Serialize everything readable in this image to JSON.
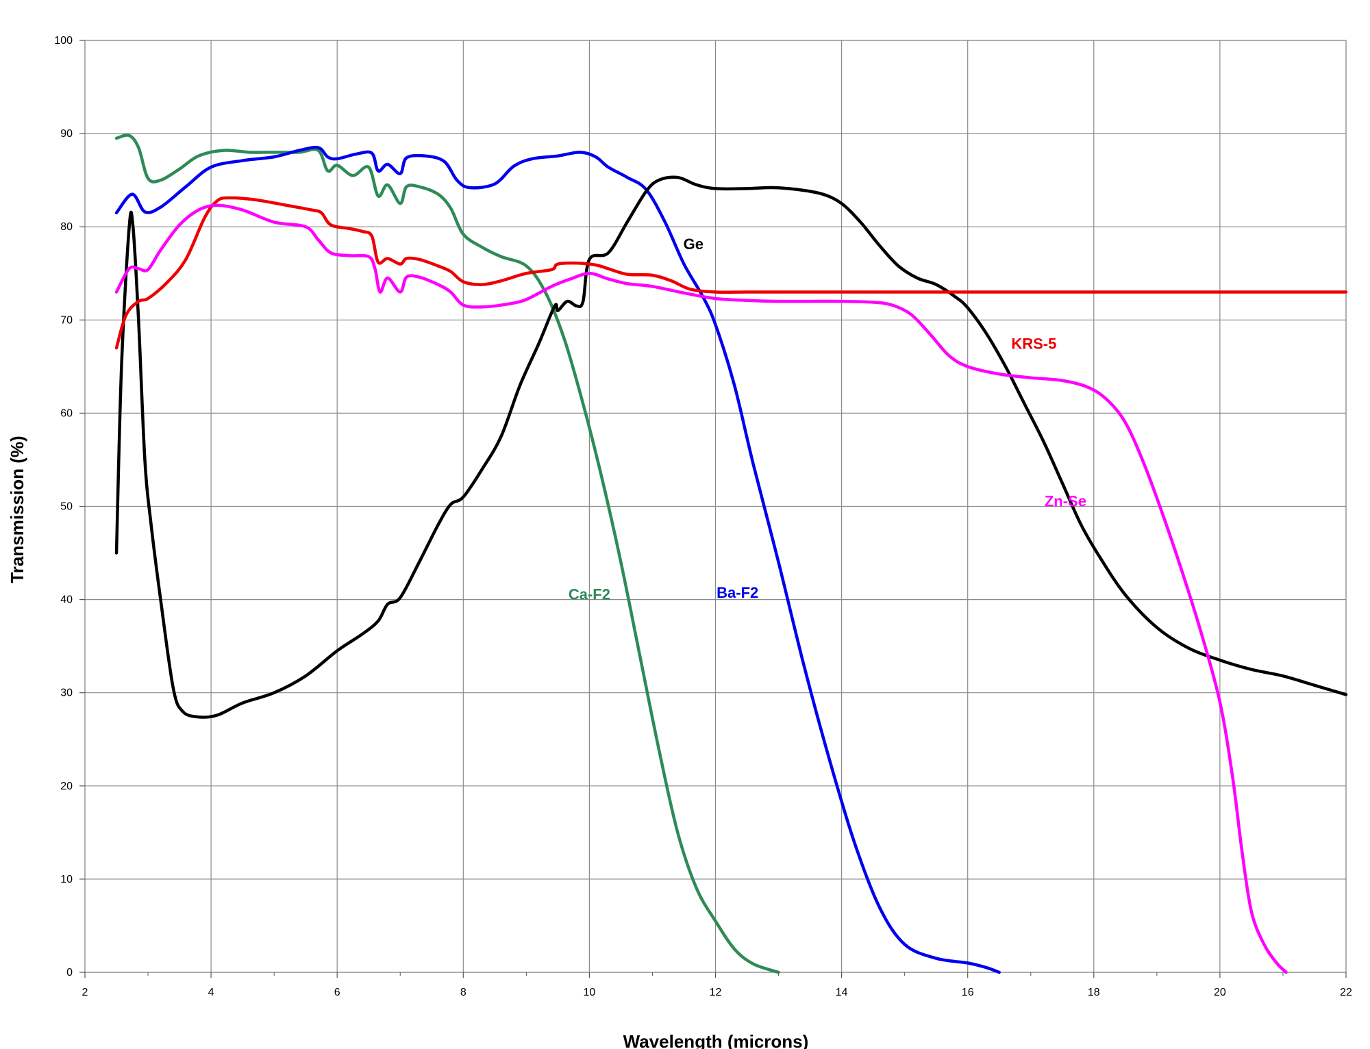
{
  "chart_data": {
    "type": "line",
    "title": "",
    "xlabel": "Wavelength (microns)",
    "ylabel": "Transmission (%)",
    "xlim": [
      2,
      22
    ],
    "ylim": [
      0,
      100
    ],
    "xticks": [
      2,
      4,
      6,
      8,
      10,
      12,
      14,
      16,
      18,
      20,
      22
    ],
    "yticks": [
      0,
      10,
      20,
      30,
      40,
      50,
      60,
      70,
      80,
      90,
      100
    ],
    "grid": true,
    "legend": "inline labels",
    "series": [
      {
        "name": "Ca-F2",
        "color": "#2e8b57",
        "label_at": [
          10.0,
          40
        ],
        "points": [
          [
            2.5,
            89.5
          ],
          [
            2.7,
            89.8
          ],
          [
            2.85,
            88.5
          ],
          [
            3.0,
            85.2
          ],
          [
            3.2,
            85.0
          ],
          [
            3.5,
            86.2
          ],
          [
            3.8,
            87.6
          ],
          [
            4.2,
            88.2
          ],
          [
            4.6,
            88.0
          ],
          [
            5.0,
            88.0
          ],
          [
            5.4,
            88.0
          ],
          [
            5.7,
            88.2
          ],
          [
            5.85,
            86.0
          ],
          [
            6.0,
            86.6
          ],
          [
            6.25,
            85.5
          ],
          [
            6.5,
            86.4
          ],
          [
            6.65,
            83.3
          ],
          [
            6.8,
            84.5
          ],
          [
            7.0,
            82.5
          ],
          [
            7.1,
            84.3
          ],
          [
            7.3,
            84.3
          ],
          [
            7.6,
            83.5
          ],
          [
            7.8,
            82.0
          ],
          [
            8.0,
            79.2
          ],
          [
            8.3,
            77.8
          ],
          [
            8.6,
            76.8
          ],
          [
            9.0,
            75.8
          ],
          [
            9.3,
            73.0
          ],
          [
            9.6,
            68.0
          ],
          [
            9.9,
            61.0
          ],
          [
            10.2,
            53.0
          ],
          [
            10.5,
            44.0
          ],
          [
            10.8,
            34.0
          ],
          [
            11.1,
            24.0
          ],
          [
            11.4,
            15.0
          ],
          [
            11.7,
            9.0
          ],
          [
            12.0,
            5.5
          ],
          [
            12.3,
            2.5
          ],
          [
            12.6,
            0.9
          ],
          [
            13.0,
            0.0
          ]
        ]
      },
      {
        "name": "Ba-F2",
        "color": "#0000ee",
        "label_at": [
          12.35,
          40.2
        ],
        "points": [
          [
            2.5,
            81.5
          ],
          [
            2.75,
            83.5
          ],
          [
            2.95,
            81.6
          ],
          [
            3.2,
            82.1
          ],
          [
            3.6,
            84.3
          ],
          [
            4.0,
            86.4
          ],
          [
            4.5,
            87.1
          ],
          [
            5.0,
            87.5
          ],
          [
            5.4,
            88.2
          ],
          [
            5.7,
            88.5
          ],
          [
            5.85,
            87.5
          ],
          [
            6.0,
            87.3
          ],
          [
            6.3,
            87.8
          ],
          [
            6.55,
            87.9
          ],
          [
            6.65,
            86.0
          ],
          [
            6.8,
            86.7
          ],
          [
            7.0,
            85.7
          ],
          [
            7.1,
            87.4
          ],
          [
            7.4,
            87.6
          ],
          [
            7.7,
            87.0
          ],
          [
            7.9,
            85.0
          ],
          [
            8.1,
            84.2
          ],
          [
            8.5,
            84.6
          ],
          [
            8.8,
            86.5
          ],
          [
            9.1,
            87.3
          ],
          [
            9.5,
            87.6
          ],
          [
            9.85,
            88.0
          ],
          [
            10.1,
            87.5
          ],
          [
            10.3,
            86.4
          ],
          [
            10.6,
            85.3
          ],
          [
            10.9,
            84.0
          ],
          [
            11.2,
            80.5
          ],
          [
            11.5,
            76.0
          ],
          [
            11.8,
            72.5
          ],
          [
            12.0,
            69.5
          ],
          [
            12.3,
            63.0
          ],
          [
            12.6,
            54.5
          ],
          [
            13.0,
            44.0
          ],
          [
            13.4,
            33.0
          ],
          [
            13.8,
            23.0
          ],
          [
            14.2,
            14.0
          ],
          [
            14.6,
            7.0
          ],
          [
            15.0,
            3.0
          ],
          [
            15.5,
            1.5
          ],
          [
            16.0,
            1.0
          ],
          [
            16.3,
            0.5
          ],
          [
            16.5,
            0.0
          ]
        ]
      },
      {
        "name": "Ge",
        "color": "#000000",
        "label_at": [
          11.65,
          77.6
        ],
        "points": [
          [
            2.5,
            45.0
          ],
          [
            2.58,
            65.0
          ],
          [
            2.7,
            79.8
          ],
          [
            2.76,
            80.2
          ],
          [
            2.85,
            70.0
          ],
          [
            2.95,
            55.0
          ],
          [
            3.05,
            48.0
          ],
          [
            3.2,
            40.0
          ],
          [
            3.4,
            30.5
          ],
          [
            3.55,
            28.0
          ],
          [
            3.8,
            27.4
          ],
          [
            4.1,
            27.6
          ],
          [
            4.5,
            28.9
          ],
          [
            5.0,
            30.0
          ],
          [
            5.5,
            31.8
          ],
          [
            6.0,
            34.5
          ],
          [
            6.4,
            36.3
          ],
          [
            6.65,
            37.7
          ],
          [
            6.8,
            39.5
          ],
          [
            7.0,
            40.2
          ],
          [
            7.3,
            44.0
          ],
          [
            7.6,
            48.0
          ],
          [
            7.8,
            50.2
          ],
          [
            8.0,
            51.0
          ],
          [
            8.3,
            54.0
          ],
          [
            8.6,
            57.5
          ],
          [
            8.9,
            63.0
          ],
          [
            9.2,
            67.5
          ],
          [
            9.45,
            71.5
          ],
          [
            9.5,
            71.0
          ],
          [
            9.65,
            72.0
          ],
          [
            9.8,
            71.5
          ],
          [
            9.9,
            72.0
          ],
          [
            10.0,
            76.5
          ],
          [
            10.3,
            77.2
          ],
          [
            10.6,
            80.5
          ],
          [
            10.9,
            83.8
          ],
          [
            11.1,
            85.0
          ],
          [
            11.4,
            85.3
          ],
          [
            11.7,
            84.5
          ],
          [
            12.0,
            84.1
          ],
          [
            12.5,
            84.1
          ],
          [
            12.9,
            84.2
          ],
          [
            13.3,
            84.0
          ],
          [
            13.7,
            83.5
          ],
          [
            14.0,
            82.5
          ],
          [
            14.3,
            80.5
          ],
          [
            14.6,
            78.0
          ],
          [
            14.9,
            75.8
          ],
          [
            15.2,
            74.5
          ],
          [
            15.5,
            73.8
          ],
          [
            15.8,
            72.5
          ],
          [
            16.0,
            71.3
          ],
          [
            16.3,
            68.5
          ],
          [
            16.6,
            65.0
          ],
          [
            16.9,
            61.0
          ],
          [
            17.2,
            57.0
          ],
          [
            17.5,
            52.5
          ],
          [
            17.8,
            48.0
          ],
          [
            18.1,
            44.5
          ],
          [
            18.5,
            40.5
          ],
          [
            19.0,
            37.0
          ],
          [
            19.5,
            34.8
          ],
          [
            20.0,
            33.5
          ],
          [
            20.5,
            32.5
          ],
          [
            21.0,
            31.8
          ],
          [
            21.5,
            30.8
          ],
          [
            22.0,
            29.8
          ]
        ]
      },
      {
        "name": "KRS-5",
        "color": "#ee0000",
        "label_at": [
          17.05,
          66.9
        ],
        "points": [
          [
            2.5,
            67.0
          ],
          [
            2.65,
            70.5
          ],
          [
            2.85,
            72.0
          ],
          [
            3.0,
            72.3
          ],
          [
            3.3,
            74.0
          ],
          [
            3.6,
            76.5
          ],
          [
            3.9,
            81.0
          ],
          [
            4.1,
            82.8
          ],
          [
            4.3,
            83.1
          ],
          [
            4.7,
            82.9
          ],
          [
            5.2,
            82.3
          ],
          [
            5.6,
            81.8
          ],
          [
            5.75,
            81.5
          ],
          [
            5.9,
            80.2
          ],
          [
            6.2,
            79.8
          ],
          [
            6.4,
            79.5
          ],
          [
            6.55,
            79.0
          ],
          [
            6.65,
            76.2
          ],
          [
            6.8,
            76.6
          ],
          [
            7.0,
            76.0
          ],
          [
            7.1,
            76.6
          ],
          [
            7.3,
            76.5
          ],
          [
            7.6,
            75.8
          ],
          [
            7.8,
            75.2
          ],
          [
            8.0,
            74.1
          ],
          [
            8.3,
            73.8
          ],
          [
            8.6,
            74.2
          ],
          [
            9.0,
            75.0
          ],
          [
            9.4,
            75.4
          ],
          [
            9.5,
            76.0
          ],
          [
            9.8,
            76.1
          ],
          [
            10.1,
            75.9
          ],
          [
            10.3,
            75.5
          ],
          [
            10.6,
            74.9
          ],
          [
            11.0,
            74.8
          ],
          [
            11.3,
            74.2
          ],
          [
            11.6,
            73.3
          ],
          [
            12.0,
            73.0
          ],
          [
            12.5,
            73.0
          ],
          [
            13.0,
            73.0
          ],
          [
            14.0,
            73.0
          ],
          [
            15.0,
            73.0
          ],
          [
            16.0,
            73.0
          ],
          [
            18.0,
            73.0
          ],
          [
            20.0,
            73.0
          ],
          [
            22.0,
            73.0
          ]
        ]
      },
      {
        "name": "Zn-Se",
        "color": "#ff00ff",
        "label_at": [
          17.55,
          50.0
        ],
        "points": [
          [
            2.5,
            73.0
          ],
          [
            2.7,
            75.5
          ],
          [
            2.85,
            75.5
          ],
          [
            3.0,
            75.4
          ],
          [
            3.2,
            77.5
          ],
          [
            3.5,
            80.2
          ],
          [
            3.8,
            81.8
          ],
          [
            4.1,
            82.3
          ],
          [
            4.5,
            81.8
          ],
          [
            5.0,
            80.5
          ],
          [
            5.5,
            80.0
          ],
          [
            5.7,
            78.6
          ],
          [
            5.9,
            77.2
          ],
          [
            6.2,
            76.9
          ],
          [
            6.5,
            76.8
          ],
          [
            6.6,
            75.5
          ],
          [
            6.68,
            73.0
          ],
          [
            6.8,
            74.5
          ],
          [
            7.0,
            73.0
          ],
          [
            7.1,
            74.6
          ],
          [
            7.3,
            74.6
          ],
          [
            7.6,
            73.8
          ],
          [
            7.8,
            73.0
          ],
          [
            8.0,
            71.6
          ],
          [
            8.3,
            71.4
          ],
          [
            8.7,
            71.7
          ],
          [
            9.0,
            72.2
          ],
          [
            9.4,
            73.6
          ],
          [
            9.7,
            74.4
          ],
          [
            10.0,
            75.0
          ],
          [
            10.3,
            74.4
          ],
          [
            10.6,
            73.9
          ],
          [
            11.0,
            73.6
          ],
          [
            11.5,
            72.9
          ],
          [
            12.0,
            72.3
          ],
          [
            12.5,
            72.1
          ],
          [
            13.0,
            72.0
          ],
          [
            13.5,
            72.0
          ],
          [
            14.0,
            72.0
          ],
          [
            14.5,
            71.9
          ],
          [
            14.8,
            71.6
          ],
          [
            15.1,
            70.6
          ],
          [
            15.4,
            68.5
          ],
          [
            15.7,
            66.2
          ],
          [
            16.0,
            65.0
          ],
          [
            16.5,
            64.2
          ],
          [
            17.0,
            63.8
          ],
          [
            17.5,
            63.5
          ],
          [
            17.9,
            62.8
          ],
          [
            18.2,
            61.5
          ],
          [
            18.5,
            59.0
          ],
          [
            18.8,
            54.5
          ],
          [
            19.1,
            49.0
          ],
          [
            19.4,
            43.0
          ],
          [
            19.7,
            36.5
          ],
          [
            20.0,
            29.0
          ],
          [
            20.2,
            21.0
          ],
          [
            20.35,
            13.0
          ],
          [
            20.5,
            6.5
          ],
          [
            20.7,
            3.0
          ],
          [
            20.9,
            1.0
          ],
          [
            21.05,
            0.0
          ]
        ]
      }
    ]
  }
}
